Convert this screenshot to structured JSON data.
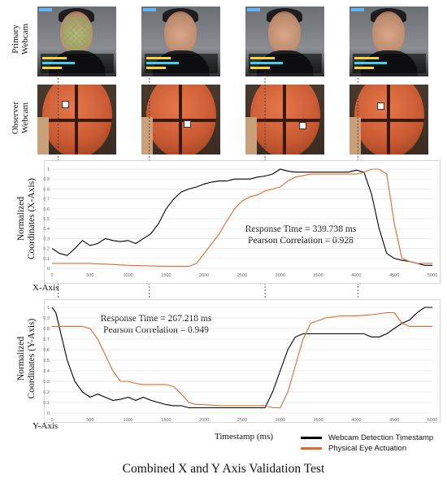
{
  "row_labels": {
    "primary": [
      "Primary",
      "Webcam"
    ],
    "observer": [
      "Observer",
      "Webcam"
    ]
  },
  "charts": {
    "x_axis": {
      "ylabel_lines": [
        "Normalized",
        "Coordinates (X-Axis)"
      ],
      "axis_name": "X-Axis",
      "annotation": [
        "Response Time = 339.738 ms",
        "Pearson Correlation = 0.928"
      ]
    },
    "y_axis": {
      "ylabel_lines": [
        "Normalized",
        "Coordinates (Y-Axis)"
      ],
      "axis_name": "Y-Axis",
      "annotation": [
        "Response Time = 267.218 ms",
        "Pearson Correlation = 0.949"
      ]
    }
  },
  "xlabel": "Timestamp (ms)",
  "legend": [
    {
      "label": "Webcam Detection Timestamp",
      "color": "#000000"
    },
    {
      "label": "Physical Eye Actuation",
      "color": "#e06a2c"
    }
  ],
  "caption": "Combined X and Y Axis Validation Test",
  "markers_ms": [
    80,
    1280,
    2800,
    4020
  ],
  "chart_data": [
    {
      "type": "line",
      "title": "",
      "xlabel": "",
      "ylabel": "Normalized Coordinates (X-Axis)",
      "xlim": [
        0,
        5000
      ],
      "ylim": [
        0,
        1
      ],
      "x_ticks": [
        0,
        500,
        1000,
        1500,
        2000,
        2500,
        3000,
        3500,
        4000,
        4500,
        5000
      ],
      "y_ticks": [
        "0",
        "0.1",
        "0.2",
        "0.3",
        "0.4",
        "0.5",
        "0.6",
        "0.7",
        "0.8",
        "0.9",
        "1"
      ],
      "grid": true,
      "series": [
        {
          "name": "Webcam Detection Timestamp",
          "color": "#000000",
          "x": [
            0,
            100,
            200,
            300,
            400,
            500,
            600,
            700,
            800,
            900,
            1000,
            1100,
            1200,
            1300,
            1400,
            1500,
            1600,
            1700,
            1800,
            1900,
            2000,
            2100,
            2200,
            2300,
            2400,
            2500,
            2600,
            2700,
            2800,
            2900,
            3000,
            3100,
            3200,
            3300,
            3400,
            3500,
            3600,
            3700,
            3800,
            3900,
            4000,
            4100,
            4200,
            4300,
            4400,
            4500,
            4600,
            4700,
            4800,
            4900,
            5000
          ],
          "y": [
            0.2,
            0.15,
            0.13,
            0.2,
            0.28,
            0.23,
            0.25,
            0.3,
            0.28,
            0.27,
            0.28,
            0.25,
            0.3,
            0.35,
            0.45,
            0.6,
            0.7,
            0.77,
            0.8,
            0.82,
            0.85,
            0.87,
            0.88,
            0.88,
            0.9,
            0.9,
            0.9,
            0.92,
            0.93,
            0.95,
            1.0,
            0.98,
            0.97,
            0.97,
            0.97,
            0.97,
            0.97,
            0.97,
            0.97,
            0.97,
            0.99,
            0.97,
            0.75,
            0.4,
            0.15,
            0.1,
            0.08,
            0.07,
            0.05,
            0.03,
            0.03
          ]
        },
        {
          "name": "Physical Eye Actuation",
          "color": "#e06a2c",
          "x": [
            0,
            500,
            1000,
            1500,
            1800,
            1900,
            2000,
            2100,
            2200,
            2300,
            2400,
            2500,
            2600,
            2700,
            2800,
            2900,
            3000,
            3100,
            3200,
            3400,
            3600,
            3800,
            4000,
            4100,
            4200,
            4300,
            4400,
            4500,
            4600,
            4700,
            4800,
            4900,
            5000
          ],
          "y": [
            0.05,
            0.05,
            0.03,
            0.02,
            0.02,
            0.05,
            0.15,
            0.25,
            0.35,
            0.48,
            0.6,
            0.68,
            0.72,
            0.74,
            0.78,
            0.8,
            0.82,
            0.88,
            0.92,
            0.95,
            0.95,
            0.95,
            0.95,
            0.97,
            1.0,
            1.0,
            0.95,
            0.45,
            0.1,
            0.07,
            0.05,
            0.05,
            0.05
          ]
        }
      ]
    },
    {
      "type": "line",
      "title": "",
      "xlabel": "",
      "ylabel": "Normalized Coordinates (Y-Axis)",
      "xlim": [
        0,
        5000
      ],
      "ylim": [
        0,
        1
      ],
      "x_ticks": [
        0,
        500,
        1000,
        1500,
        2000,
        2500,
        3000,
        3500,
        4000,
        4500,
        5000
      ],
      "y_ticks": [
        "0",
        "0.1",
        "0.2",
        "0.3",
        "0.4",
        "0.5",
        "0.6",
        "0.7",
        "0.8",
        "0.9",
        "1"
      ],
      "grid": true,
      "series": [
        {
          "name": "Webcam Detection Timestamp",
          "color": "#000000",
          "x": [
            0,
            50,
            100,
            200,
            300,
            400,
            500,
            600,
            700,
            800,
            900,
            1000,
            1100,
            1200,
            1300,
            1400,
            1500,
            1600,
            1700,
            1800,
            1900,
            2000,
            2100,
            2200,
            2300,
            2400,
            2500,
            2600,
            2700,
            2800,
            2900,
            3000,
            3100,
            3200,
            3300,
            3400,
            3500,
            3600,
            3700,
            3800,
            3900,
            4000,
            4100,
            4200,
            4300,
            4400,
            4500,
            4600,
            4700,
            4800,
            4900,
            5000
          ],
          "y": [
            1.0,
            0.95,
            0.8,
            0.5,
            0.3,
            0.2,
            0.15,
            0.18,
            0.15,
            0.12,
            0.13,
            0.15,
            0.12,
            0.15,
            0.12,
            0.1,
            0.08,
            0.07,
            0.07,
            0.05,
            0.05,
            0.05,
            0.05,
            0.05,
            0.05,
            0.05,
            0.05,
            0.05,
            0.05,
            0.05,
            0.2,
            0.4,
            0.6,
            0.72,
            0.75,
            0.75,
            0.75,
            0.75,
            0.75,
            0.75,
            0.75,
            0.75,
            0.75,
            0.72,
            0.72,
            0.75,
            0.8,
            0.85,
            0.88,
            0.95,
            1.0,
            1.0
          ]
        },
        {
          "name": "Physical Eye Actuation",
          "color": "#e06a2c",
          "x": [
            0,
            200,
            400,
            500,
            600,
            700,
            800,
            900,
            1000,
            1100,
            1200,
            1300,
            1400,
            1500,
            1600,
            1700,
            1800,
            1900,
            2000,
            2200,
            2400,
            2600,
            2800,
            2900,
            3000,
            3100,
            3200,
            3300,
            3400,
            3600,
            3800,
            4000,
            4200,
            4400,
            4500,
            4600,
            4700,
            4800,
            5000
          ],
          "y": [
            0.82,
            0.82,
            0.82,
            0.8,
            0.7,
            0.55,
            0.4,
            0.3,
            0.3,
            0.28,
            0.27,
            0.27,
            0.27,
            0.27,
            0.25,
            0.18,
            0.1,
            0.08,
            0.08,
            0.07,
            0.07,
            0.07,
            0.07,
            0.05,
            0.05,
            0.2,
            0.45,
            0.7,
            0.85,
            0.9,
            0.92,
            0.92,
            0.93,
            0.95,
            0.95,
            0.85,
            0.82,
            0.82,
            0.82
          ]
        }
      ]
    }
  ]
}
